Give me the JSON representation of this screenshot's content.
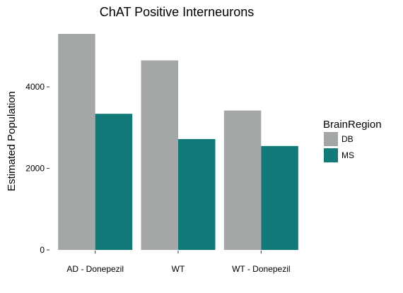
{
  "chart_data": {
    "type": "bar",
    "title": "ChAT Positive Interneurons",
    "xlabel": "",
    "ylabel": "Estimated Population",
    "categories": [
      "AD - Donepezil",
      "WT",
      "WT - Donepezil"
    ],
    "series": [
      {
        "name": "DB",
        "color": "#a3a7a7",
        "values": [
          5300,
          4650,
          3420
        ]
      },
      {
        "name": "MS",
        "color": "#117a78",
        "values": [
          3340,
          2720,
          2550
        ]
      }
    ],
    "yticks": [
      0,
      2000,
      4000
    ],
    "ylim": [
      0,
      5560
    ],
    "grid": false,
    "legend": {
      "title": "BrainRegion",
      "position": "right"
    }
  }
}
